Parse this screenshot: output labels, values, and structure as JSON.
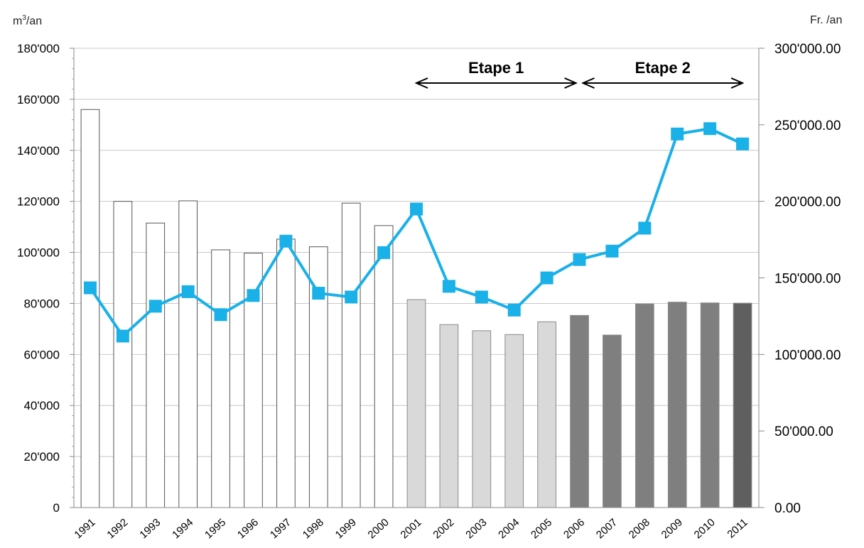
{
  "chart_data": {
    "type": "bar+line",
    "categories": [
      "1991",
      "1992",
      "1993",
      "1994",
      "1995",
      "1996",
      "1997",
      "1998",
      "1999",
      "2000",
      "2001",
      "2002",
      "2003",
      "2004",
      "2005",
      "2006",
      "2007",
      "2008",
      "2009",
      "2010",
      "2011"
    ],
    "bar_series": {
      "axis": "left",
      "values": [
        156000,
        120000,
        111500,
        120200,
        101000,
        99700,
        105200,
        102200,
        119300,
        110500,
        81500,
        71700,
        69300,
        67800,
        72800,
        75300,
        67600,
        79800,
        80500,
        80200,
        80100
      ],
      "colors": [
        "#ffffff",
        "#ffffff",
        "#ffffff",
        "#ffffff",
        "#ffffff",
        "#ffffff",
        "#ffffff",
        "#ffffff",
        "#ffffff",
        "#ffffff",
        "#d9d9d9",
        "#d9d9d9",
        "#d9d9d9",
        "#d9d9d9",
        "#d9d9d9",
        "#7f7f7f",
        "#7f7f7f",
        "#7f7f7f",
        "#7f7f7f",
        "#7f7f7f",
        "#5f5f5f"
      ]
    },
    "line_series": {
      "axis": "right",
      "color": "#1ab0e8",
      "values": [
        143500,
        112000,
        131500,
        141000,
        126000,
        138500,
        174000,
        140000,
        137500,
        166500,
        195000,
        144500,
        137500,
        129000,
        150000,
        162000,
        167500,
        182500,
        244000,
        247500,
        237500
      ]
    },
    "y_left": {
      "unit_base": "m",
      "unit_sup": "3",
      "unit_rest": "/an",
      "ylim": [
        0,
        180000
      ],
      "ticks": [
        "0",
        "20'000",
        "40'000",
        "60'000",
        "80'000",
        "100'000",
        "120'000",
        "140'000",
        "160'000",
        "180'000"
      ]
    },
    "y_right": {
      "unit": "Fr. /an",
      "ylim": [
        0,
        300000
      ],
      "ticks": [
        "0.00",
        "50'000.00",
        "100'000.00",
        "150'000.00",
        "200'000.00",
        "250'000.00",
        "300'000.00"
      ]
    },
    "annotations": [
      {
        "label": "Etape 1",
        "from": "2001",
        "to": "2006"
      },
      {
        "label": "Etape 2",
        "from": "2006",
        "to": "2011"
      }
    ],
    "grid": true
  }
}
